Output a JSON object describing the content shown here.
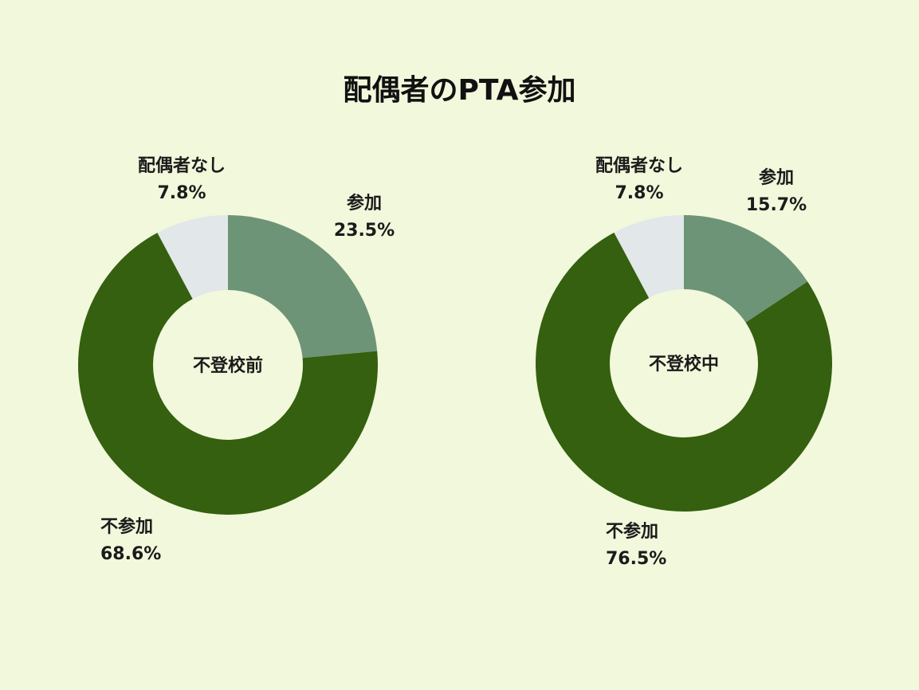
{
  "title": "配偶者のPTA参加",
  "colors": {
    "background": "#f2f8db",
    "参加": "#6e9477",
    "不参加": "#34600f",
    "配偶者なし": "#e2e7e9"
  },
  "chart_data": [
    {
      "type": "pie",
      "center_label": "不登校前",
      "slices": [
        {
          "label": "参加",
          "value": 23.5,
          "value_text": "23.5%"
        },
        {
          "label": "不参加",
          "value": 68.6,
          "value_text": "68.6%"
        },
        {
          "label": "配偶者なし",
          "value": 7.8,
          "value_text": "7.8%"
        }
      ]
    },
    {
      "type": "pie",
      "center_label": "不登校中",
      "slices": [
        {
          "label": "参加",
          "value": 15.7,
          "value_text": "15.7%"
        },
        {
          "label": "不参加",
          "value": 76.5,
          "value_text": "76.5%"
        },
        {
          "label": "配偶者なし",
          "value": 7.8,
          "value_text": "7.8%"
        }
      ]
    }
  ]
}
